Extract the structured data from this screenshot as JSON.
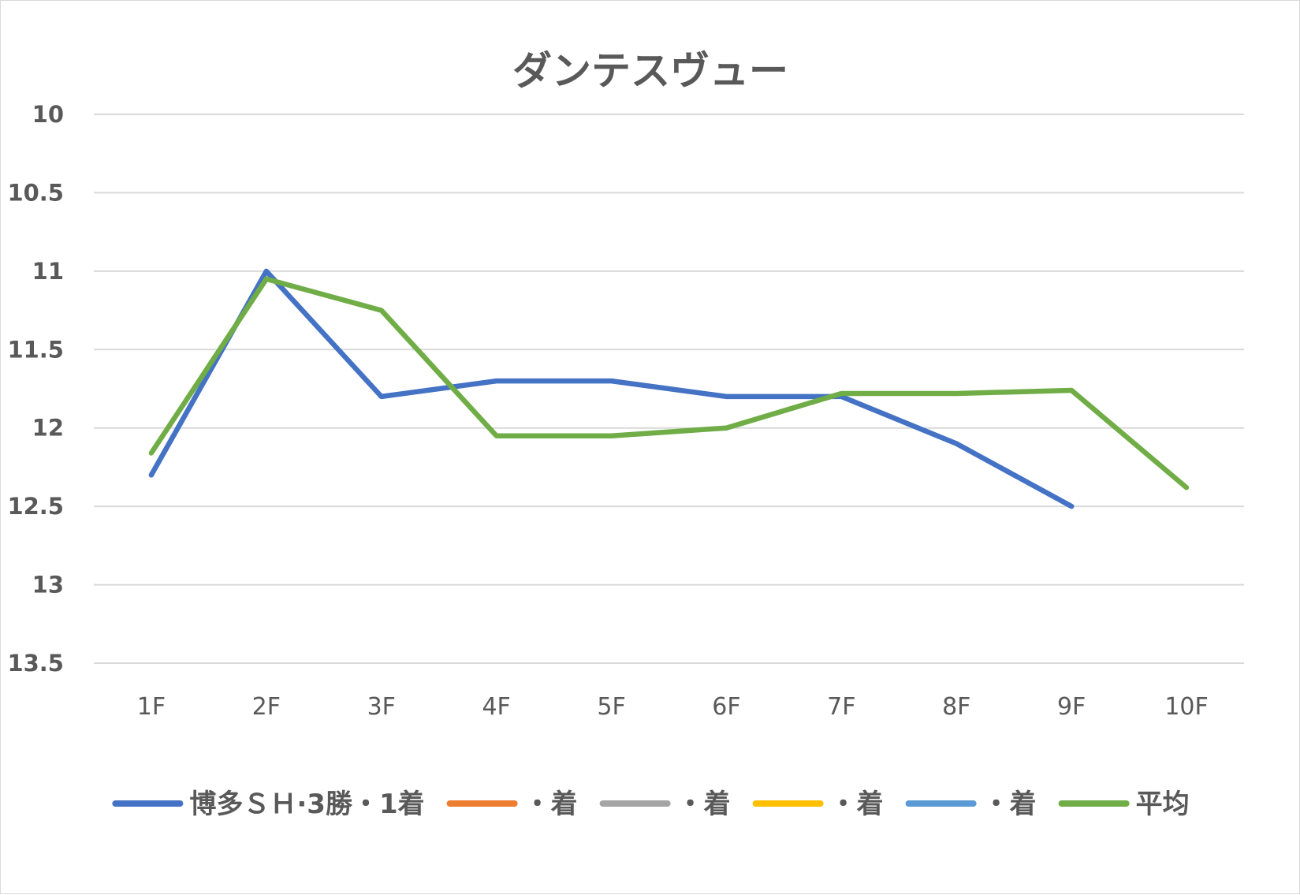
{
  "chart_data": {
    "type": "line",
    "title": "ダンテスヴュー",
    "categories": [
      "1F",
      "2F",
      "3F",
      "4F",
      "5F",
      "6F",
      "7F",
      "8F",
      "9F",
      "10F"
    ],
    "y_axis": {
      "min": 10,
      "max": 13.5,
      "step": 0.5,
      "reversed": true,
      "tick_labels": [
        "10",
        "10.5",
        "11",
        "11.5",
        "12",
        "12.5",
        "13",
        "13.5"
      ]
    },
    "grid": true,
    "legend_position": "bottom",
    "series": [
      {
        "name": "博多ＳＨ·3勝・1着",
        "color": "#4472C4",
        "values": [
          12.3,
          11.0,
          11.8,
          11.7,
          11.7,
          11.8,
          11.8,
          12.1,
          12.5,
          null
        ]
      },
      {
        "name": "・着",
        "color": "#ED7D31",
        "values": [
          null,
          null,
          null,
          null,
          null,
          null,
          null,
          null,
          null,
          null
        ]
      },
      {
        "name": "・着",
        "color": "#A5A5A5",
        "values": [
          null,
          null,
          null,
          null,
          null,
          null,
          null,
          null,
          null,
          null
        ]
      },
      {
        "name": "・着",
        "color": "#FFC000",
        "values": [
          null,
          null,
          null,
          null,
          null,
          null,
          null,
          null,
          null,
          null
        ]
      },
      {
        "name": "・着",
        "color": "#5B9BD5",
        "values": [
          null,
          null,
          null,
          null,
          null,
          null,
          null,
          null,
          null,
          null
        ]
      },
      {
        "name": "平均",
        "color": "#70AD47",
        "values": [
          12.16,
          11.05,
          11.25,
          12.05,
          12.05,
          12.0,
          11.78,
          11.78,
          11.76,
          12.38
        ]
      }
    ]
  }
}
